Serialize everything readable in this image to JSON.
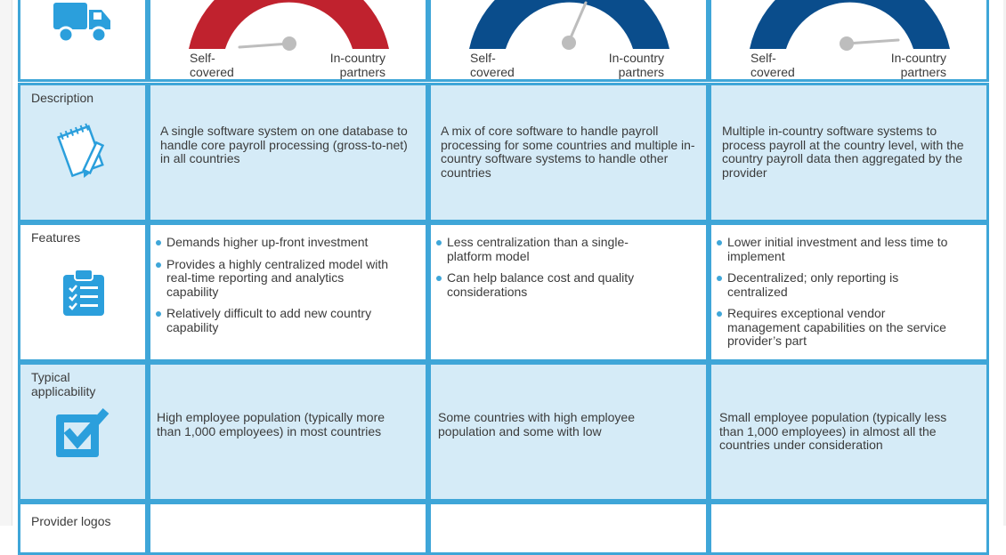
{
  "colors": {
    "border": "#3fa6d8",
    "shade": "#d5ebf7",
    "red": "#c0222e",
    "navy": "#0a4d8c",
    "needle": "#bdbdbd",
    "icon": "#2b9fdc"
  },
  "gauges": [
    {
      "left_label": "Self-\ncovered",
      "right_label": "In-country\npartners",
      "arc_color": "red"
    },
    {
      "left_label": "Self-\ncovered",
      "right_label": "In-country\npartners",
      "arc_color": "navy"
    },
    {
      "left_label": "Self-\ncovered",
      "right_label": "In-country\npartners",
      "arc_color": "navy"
    }
  ],
  "rows": {
    "description": {
      "label": "Description",
      "icon": "notepad-pencil-icon",
      "cells": [
        "A single software system on one database to handle core payroll processing (gross-to-net) in all countries",
        "A mix of core software to handle payroll processing for some countries and multiple in-country software systems to handle other countries",
        "Multiple in-country software systems to process payroll at the country level, with the country payroll data then aggregated by the provider"
      ]
    },
    "features": {
      "label": "Features",
      "icon": "clipboard-checklist-icon",
      "cells": [
        [
          "Demands higher up-front investment",
          "Provides a highly centralized model with real-time reporting and analytics capability",
          "Relatively difficult to add new country capability"
        ],
        [
          "Less centralization than a single-platform model",
          "Can help balance cost and quality considerations"
        ],
        [
          "Lower initial investment and less time to implement",
          "Decentralized; only reporting is centralized",
          "Requires exceptional vendor management capabilities on the service provider’s part"
        ]
      ]
    },
    "applicability": {
      "label": "Typical\napplicability",
      "icon": "checkbox-checked-icon",
      "cells": [
        "High employee population (typically more than 1,000 employees) in most countries",
        "Some countries with high employee population and some with low",
        "Small employee population (typically less than 1,000 employees) in almost all the countries under consideration"
      ]
    },
    "logos": {
      "label": "Provider logos"
    }
  },
  "top_icon": "delivery-truck-icon"
}
